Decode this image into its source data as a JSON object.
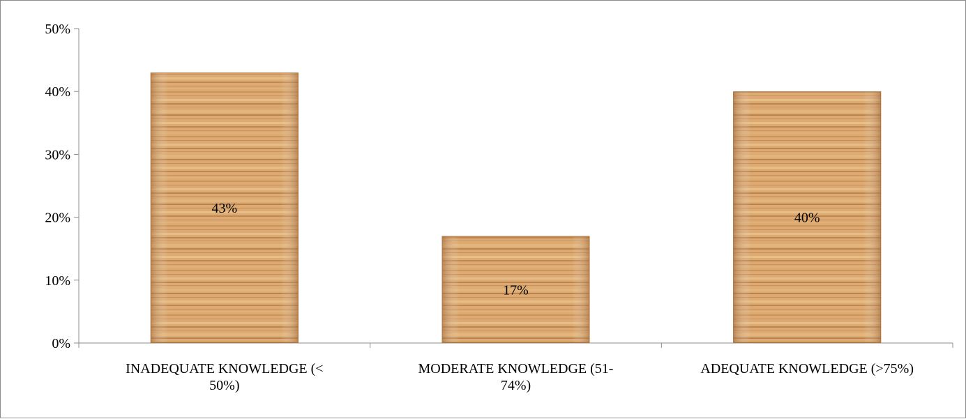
{
  "chart_data": {
    "type": "bar",
    "categories": [
      [
        "INADEQUATE KNOWLEDGE (<",
        "50%)"
      ],
      [
        "MODERATE KNOWLEDGE (51-",
        "74%)"
      ],
      [
        "ADEQUATE KNOWLEDGE (>75%)"
      ]
    ],
    "values": [
      43,
      17,
      40
    ],
    "data_labels": [
      "43%",
      "17%",
      "40%"
    ],
    "ylim": [
      0,
      50
    ],
    "yticks": [
      0,
      10,
      20,
      30,
      40,
      50
    ],
    "ytick_labels": [
      "0%",
      "10%",
      "20%",
      "30%",
      "40%",
      "50%"
    ],
    "title": "",
    "xlabel": "",
    "ylabel": "",
    "grid": false,
    "legend": "none",
    "bar_fill": "wood-texture",
    "colors": {
      "bar_base": "#d9a46b",
      "bar_light": "#e8bd8a",
      "bar_dark": "#a86a35",
      "axis": "#8c8c8c",
      "text": "#000000"
    }
  }
}
